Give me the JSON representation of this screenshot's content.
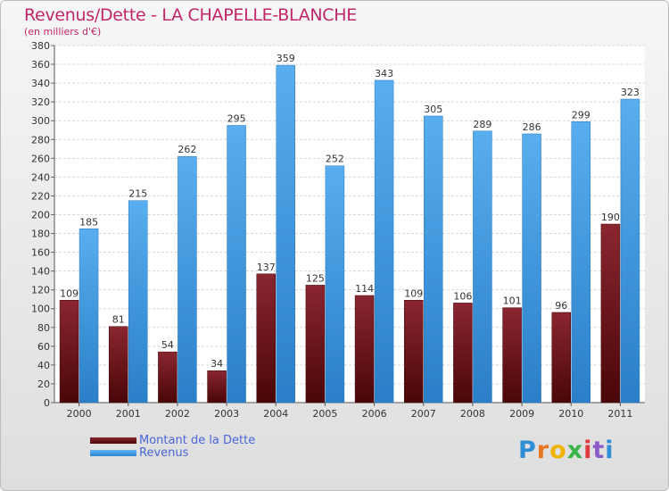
{
  "chart_data": {
    "type": "bar",
    "title": "Revenus/Dette - LA CHAPELLE-BLANCHE",
    "subtitle": "(en milliers d'€)",
    "categories": [
      "2000",
      "2001",
      "2002",
      "2003",
      "2004",
      "2005",
      "2006",
      "2007",
      "2008",
      "2009",
      "2010",
      "2011"
    ],
    "series": [
      {
        "name": "Montant de la Dette",
        "color": "#6e1218",
        "values": [
          109,
          81,
          54,
          34,
          137,
          125,
          114,
          109,
          106,
          101,
          96,
          190
        ]
      },
      {
        "name": "Revenus",
        "color": "#3b9ae4",
        "values": [
          185,
          215,
          262,
          295,
          359,
          252,
          343,
          305,
          289,
          286,
          299,
          323
        ]
      }
    ],
    "ylim": [
      0,
      380
    ],
    "ytick_step": 20,
    "grid": true,
    "legend": "bottom-left"
  },
  "brand": {
    "letters": [
      "P",
      "r",
      "o",
      "x",
      "i",
      "t",
      "i"
    ],
    "colors": [
      "#2e8fd6",
      "#e87722",
      "#f0b400",
      "#3ab54a",
      "#e03a3e",
      "#8a5cc8",
      "#2e8fd6"
    ]
  }
}
